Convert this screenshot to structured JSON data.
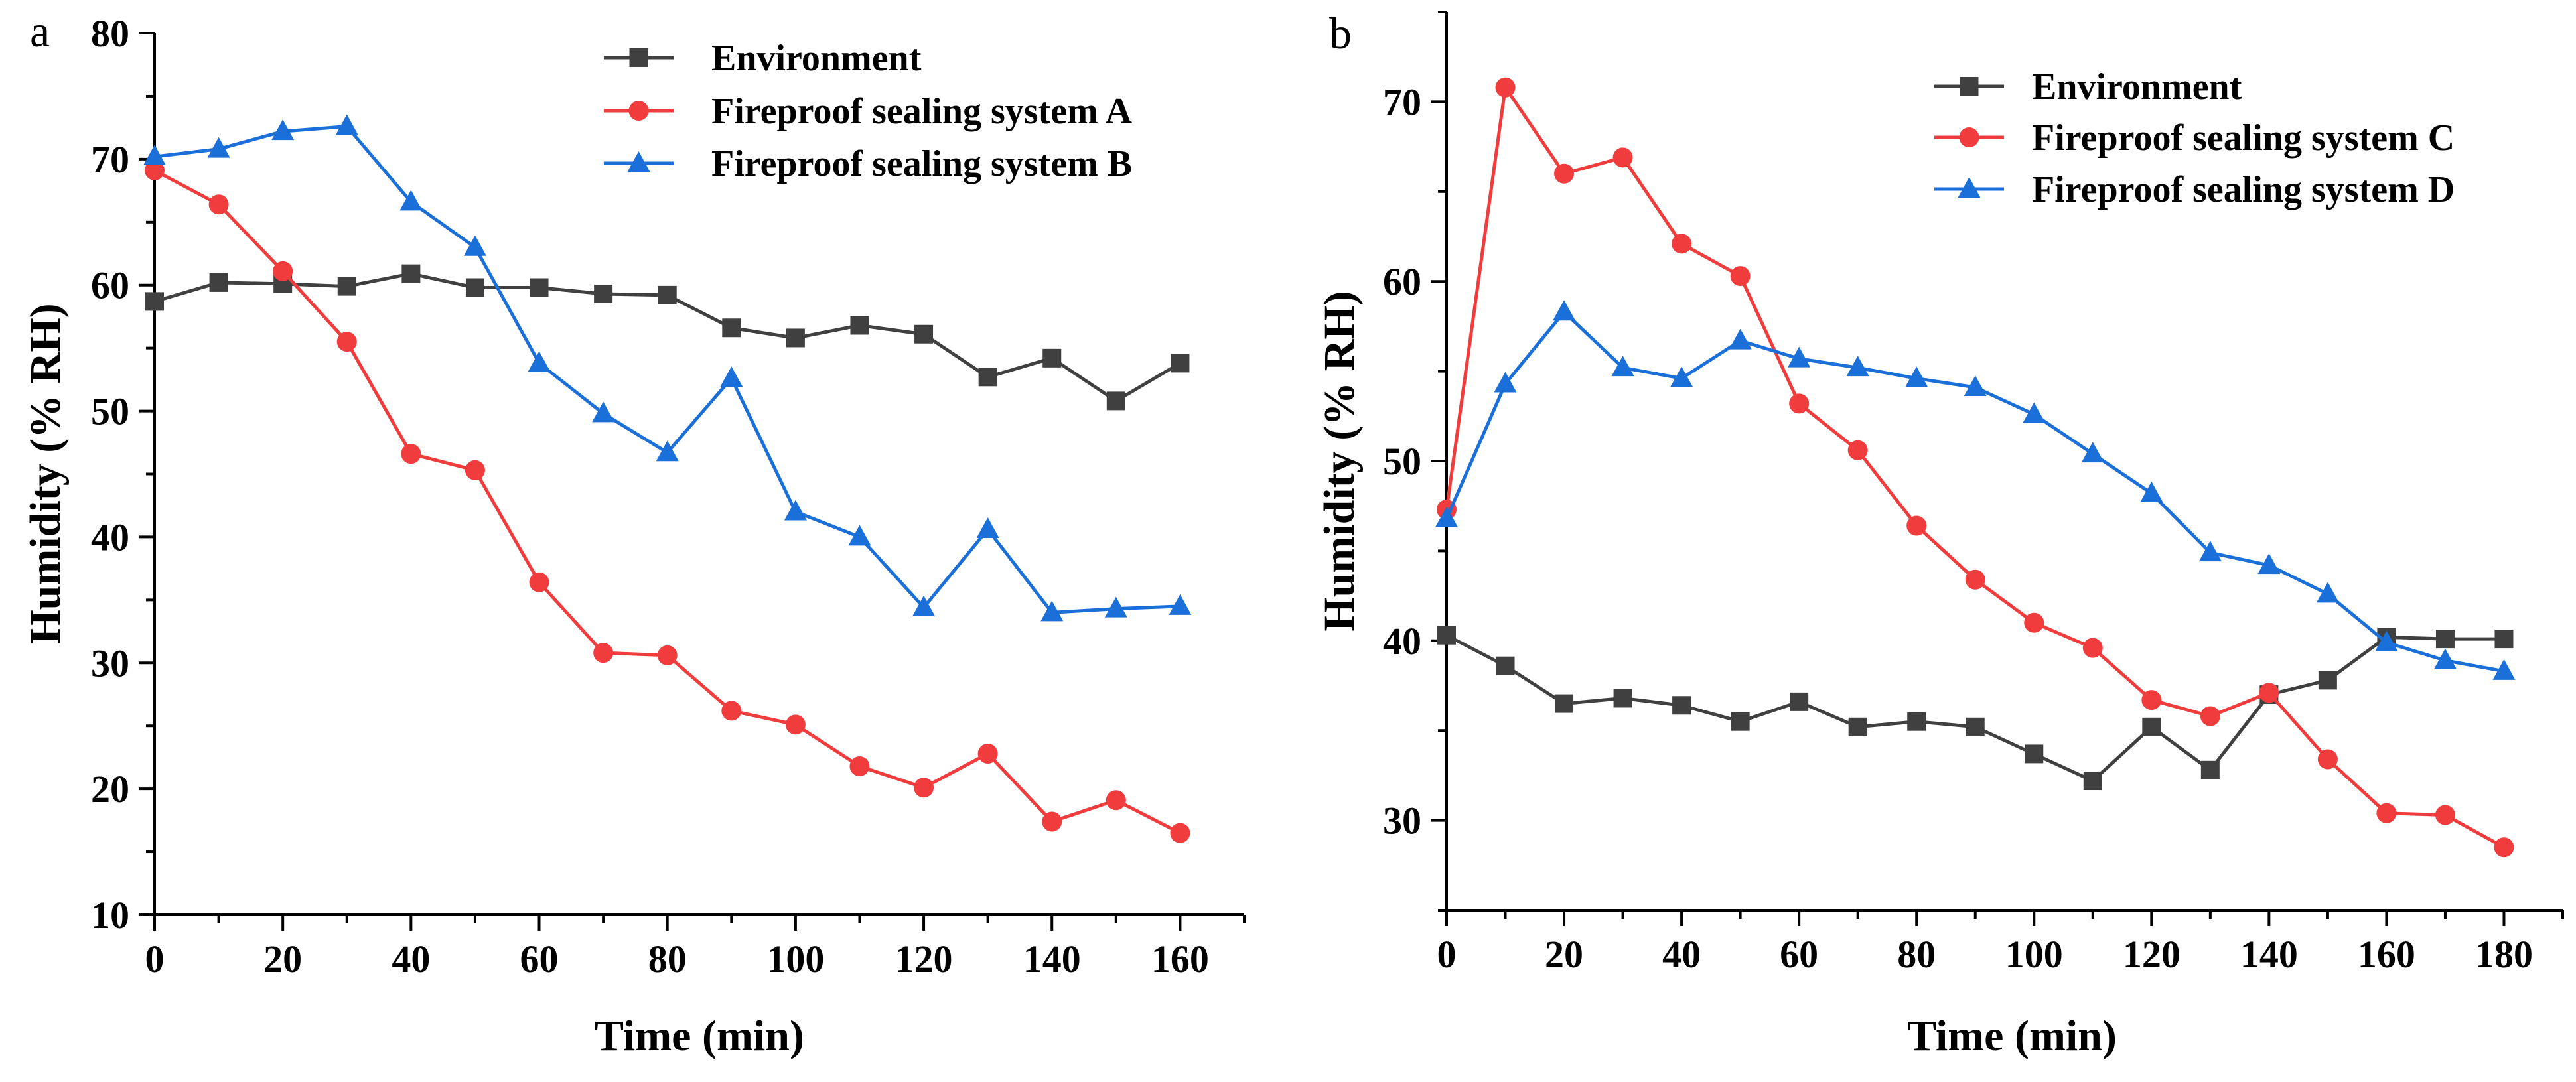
{
  "chart_data": [
    {
      "type": "line",
      "panel_label": "a",
      "xlabel": "Time (min)",
      "ylabel": "Humidity (% RH)",
      "xlim": [
        0,
        170
      ],
      "ylim": [
        10,
        80
      ],
      "xticks": [
        "0",
        "20",
        "40",
        "60",
        "80",
        "100",
        "120",
        "140",
        "160"
      ],
      "yticks": [
        "10",
        "20",
        "30",
        "40",
        "50",
        "60",
        "70",
        "80"
      ],
      "legend_position": "top-right",
      "x": [
        0,
        10,
        20,
        30,
        40,
        50,
        60,
        70,
        80,
        90,
        100,
        110,
        120,
        130,
        140,
        150,
        160
      ],
      "series": [
        {
          "name": "Environment",
          "color": "#404040",
          "marker": "square",
          "values": [
            58.7,
            60.2,
            60.1,
            59.9,
            60.9,
            59.8,
            59.8,
            59.3,
            59.2,
            56.6,
            55.8,
            56.8,
            56.1,
            52.7,
            54.2,
            50.8,
            53.8
          ]
        },
        {
          "name": "Fireproof sealing system A",
          "color": "#f03c3c",
          "marker": "circle",
          "values": [
            69.1,
            66.4,
            61.1,
            55.5,
            46.6,
            45.3,
            36.4,
            30.8,
            30.6,
            26.2,
            25.1,
            21.8,
            20.1,
            22.8,
            17.4,
            19.1,
            16.5
          ]
        },
        {
          "name": "Fireproof sealing system B",
          "color": "#1a6fd8",
          "marker": "triangle",
          "values": [
            70.2,
            70.8,
            72.2,
            72.6,
            66.6,
            63.0,
            53.8,
            49.8,
            46.7,
            52.6,
            42.0,
            40.0,
            34.4,
            40.6,
            34.0,
            34.3,
            34.5
          ]
        }
      ]
    },
    {
      "type": "line",
      "panel_label": "b",
      "xlabel": "Time (min)",
      "ylabel": "Humidity (% RH)",
      "xlim": [
        0,
        190
      ],
      "ylim": [
        25,
        75
      ],
      "xticks": [
        "0",
        "20",
        "40",
        "60",
        "80",
        "100",
        "120",
        "140",
        "160",
        "180"
      ],
      "yticks": [
        "30",
        "40",
        "50",
        "60",
        "70"
      ],
      "legend_position": "top-right",
      "x": [
        0,
        10,
        20,
        30,
        40,
        50,
        60,
        70,
        80,
        90,
        100,
        110,
        120,
        130,
        140,
        150,
        160,
        170,
        180
      ],
      "series": [
        {
          "name": "Environment",
          "color": "#404040",
          "marker": "square",
          "values": [
            40.3,
            38.6,
            36.5,
            36.8,
            36.4,
            35.5,
            36.6,
            35.2,
            35.5,
            35.2,
            33.7,
            32.2,
            35.2,
            32.8,
            37.0,
            37.8,
            40.2,
            40.1,
            40.1
          ]
        },
        {
          "name": "Fireproof sealing system C",
          "color": "#f03c3c",
          "marker": "circle",
          "values": [
            47.3,
            70.8,
            66.0,
            66.9,
            62.1,
            60.3,
            53.2,
            50.6,
            46.4,
            43.4,
            41.0,
            39.6,
            36.7,
            35.8,
            37.1,
            33.4,
            30.4,
            30.3,
            28.5
          ]
        },
        {
          "name": "Fireproof sealing system D",
          "color": "#1a6fd8",
          "marker": "triangle",
          "values": [
            46.8,
            54.3,
            58.3,
            55.2,
            54.6,
            56.7,
            55.7,
            55.2,
            54.6,
            54.1,
            52.6,
            50.4,
            48.2,
            44.9,
            44.2,
            42.6,
            39.9,
            38.9,
            38.3
          ]
        }
      ]
    }
  ]
}
